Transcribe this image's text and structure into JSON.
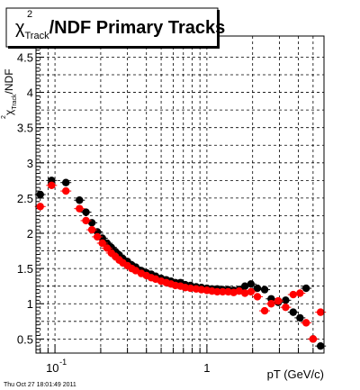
{
  "footer_text": "Thu Oct 27 18:01:49 2011",
  "colors": {
    "series_black": "#000000",
    "series_red": "#ff0000",
    "grid": "#000000",
    "frame": "#000000",
    "background": "#ffffff"
  },
  "chart_data": {
    "type": "scatter",
    "title_parts": {
      "chi": "χ",
      "superscript": "2",
      "subscript": "Track",
      "rest": "/NDF  Primary Tracks"
    },
    "xlabel": "pT (GeV/c)",
    "ylabel_parts": {
      "chi": "χ",
      "superscript": "2",
      "subscript": "Track",
      "rest": "/NDF"
    },
    "x_scale": "log",
    "xlim": [
      0.075,
      5.9
    ],
    "ylim": [
      0.3,
      4.8
    ],
    "grid": true,
    "x_tick_labels": [
      {
        "value": 0.1,
        "base": "10",
        "exp": "-1"
      },
      {
        "value": 1,
        "base": "1",
        "exp": ""
      }
    ],
    "y_tick_labels": [
      {
        "value": 0.5,
        "label": "0.5"
      },
      {
        "value": 1,
        "label": "1"
      },
      {
        "value": 1.5,
        "label": "1.5"
      },
      {
        "value": 2,
        "label": "2"
      },
      {
        "value": 2.5,
        "label": "2.5"
      },
      {
        "value": 3,
        "label": "3"
      },
      {
        "value": 3.5,
        "label": "3.5"
      },
      {
        "value": 4,
        "label": "4"
      },
      {
        "value": 4.5,
        "label": "4.5"
      }
    ],
    "series": [
      {
        "color": "#000000",
        "points": [
          {
            "x": 0.08,
            "y": 2.55
          },
          {
            "x": 0.095,
            "y": 2.75
          },
          {
            "x": 0.118,
            "y": 2.72
          },
          {
            "x": 0.145,
            "y": 2.47
          },
          {
            "x": 0.16,
            "y": 2.3
          },
          {
            "x": 0.175,
            "y": 2.15
          },
          {
            "x": 0.19,
            "y": 2.02
          },
          {
            "x": 0.205,
            "y": 1.93
          },
          {
            "x": 0.22,
            "y": 1.86
          },
          {
            "x": 0.235,
            "y": 1.8
          },
          {
            "x": 0.25,
            "y": 1.74
          },
          {
            "x": 0.265,
            "y": 1.69
          },
          {
            "x": 0.28,
            "y": 1.64
          },
          {
            "x": 0.3,
            "y": 1.6
          },
          {
            "x": 0.32,
            "y": 1.55
          },
          {
            "x": 0.34,
            "y": 1.52
          },
          {
            "x": 0.37,
            "y": 1.47
          },
          {
            "x": 0.4,
            "y": 1.44
          },
          {
            "x": 0.43,
            "y": 1.42
          },
          {
            "x": 0.46,
            "y": 1.39
          },
          {
            "x": 0.5,
            "y": 1.36
          },
          {
            "x": 0.54,
            "y": 1.34
          },
          {
            "x": 0.58,
            "y": 1.32
          },
          {
            "x": 0.62,
            "y": 1.3
          },
          {
            "x": 0.67,
            "y": 1.3
          },
          {
            "x": 0.72,
            "y": 1.27
          },
          {
            "x": 0.78,
            "y": 1.26
          },
          {
            "x": 0.85,
            "y": 1.24
          },
          {
            "x": 0.92,
            "y": 1.23
          },
          {
            "x": 1.0,
            "y": 1.22
          },
          {
            "x": 1.08,
            "y": 1.21
          },
          {
            "x": 1.17,
            "y": 1.21
          },
          {
            "x": 1.27,
            "y": 1.2
          },
          {
            "x": 1.38,
            "y": 1.2
          },
          {
            "x": 1.5,
            "y": 1.19
          },
          {
            "x": 1.63,
            "y": 1.2
          },
          {
            "x": 1.78,
            "y": 1.25
          },
          {
            "x": 1.95,
            "y": 1.28
          },
          {
            "x": 2.15,
            "y": 1.22
          },
          {
            "x": 2.4,
            "y": 1.2
          },
          {
            "x": 2.65,
            "y": 1.07
          },
          {
            "x": 2.95,
            "y": 1.02
          },
          {
            "x": 3.3,
            "y": 1.05
          },
          {
            "x": 3.7,
            "y": 0.88
          },
          {
            "x": 4.1,
            "y": 0.8
          },
          {
            "x": 4.5,
            "y": 1.22
          },
          {
            "x": 5.0,
            "y": 0.5
          },
          {
            "x": 5.6,
            "y": 0.4
          }
        ]
      },
      {
        "color": "#ff0000",
        "points": [
          {
            "x": 0.08,
            "y": 2.38
          },
          {
            "x": 0.095,
            "y": 2.68
          },
          {
            "x": 0.118,
            "y": 2.6
          },
          {
            "x": 0.145,
            "y": 2.35
          },
          {
            "x": 0.16,
            "y": 2.18
          },
          {
            "x": 0.175,
            "y": 2.05
          },
          {
            "x": 0.19,
            "y": 1.95
          },
          {
            "x": 0.205,
            "y": 1.86
          },
          {
            "x": 0.22,
            "y": 1.79
          },
          {
            "x": 0.235,
            "y": 1.72
          },
          {
            "x": 0.25,
            "y": 1.67
          },
          {
            "x": 0.265,
            "y": 1.62
          },
          {
            "x": 0.28,
            "y": 1.58
          },
          {
            "x": 0.3,
            "y": 1.54
          },
          {
            "x": 0.32,
            "y": 1.5
          },
          {
            "x": 0.34,
            "y": 1.47
          },
          {
            "x": 0.37,
            "y": 1.43
          },
          {
            "x": 0.4,
            "y": 1.4
          },
          {
            "x": 0.43,
            "y": 1.37
          },
          {
            "x": 0.46,
            "y": 1.35
          },
          {
            "x": 0.5,
            "y": 1.32
          },
          {
            "x": 0.54,
            "y": 1.3
          },
          {
            "x": 0.58,
            "y": 1.28
          },
          {
            "x": 0.62,
            "y": 1.26
          },
          {
            "x": 0.67,
            "y": 1.25
          },
          {
            "x": 0.72,
            "y": 1.23
          },
          {
            "x": 0.78,
            "y": 1.22
          },
          {
            "x": 0.85,
            "y": 1.21
          },
          {
            "x": 0.92,
            "y": 1.2
          },
          {
            "x": 1.0,
            "y": 1.19
          },
          {
            "x": 1.08,
            "y": 1.18
          },
          {
            "x": 1.17,
            "y": 1.17
          },
          {
            "x": 1.27,
            "y": 1.17
          },
          {
            "x": 1.38,
            "y": 1.17
          },
          {
            "x": 1.5,
            "y": 1.16
          },
          {
            "x": 1.63,
            "y": 1.18
          },
          {
            "x": 1.78,
            "y": 1.15
          },
          {
            "x": 1.95,
            "y": 1.17
          },
          {
            "x": 2.15,
            "y": 1.1
          },
          {
            "x": 2.4,
            "y": 0.9
          },
          {
            "x": 2.65,
            "y": 1.0
          },
          {
            "x": 2.95,
            "y": 1.04
          },
          {
            "x": 3.3,
            "y": 0.95
          },
          {
            "x": 3.7,
            "y": 1.13
          },
          {
            "x": 4.1,
            "y": 1.15
          },
          {
            "x": 4.5,
            "y": 0.73
          },
          {
            "x": 5.0,
            "y": 0.5
          },
          {
            "x": 5.6,
            "y": 0.88
          }
        ]
      }
    ]
  }
}
